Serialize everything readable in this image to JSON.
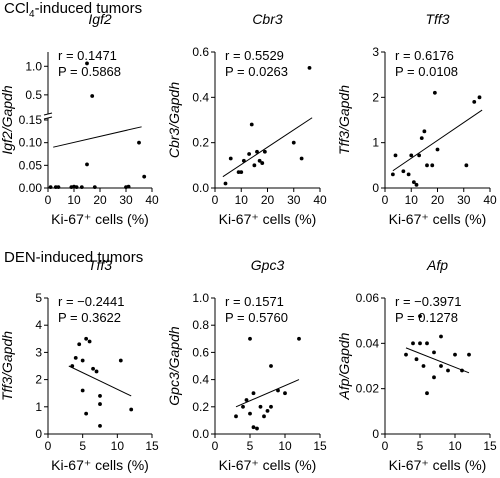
{
  "sections": [
    {
      "title_main": "CCl",
      "title_sub": "4",
      "title_rest": "-induced tumors"
    },
    {
      "title_main": "DEN-induced tumors",
      "title_sub": "",
      "title_rest": ""
    }
  ],
  "chart_data": [
    {
      "type": "scatter",
      "title": "Igf2",
      "ylabel": "Igf2/Gapdh",
      "xlabel": "Ki-67⁺ cells (%)",
      "xlim": [
        0,
        40
      ],
      "xticks": [
        0,
        10,
        20,
        30,
        40
      ],
      "ylim": [
        0,
        1.25
      ],
      "yticks": [
        0.0,
        0.05,
        0.1,
        0.15,
        0.5,
        1.0
      ],
      "ytick_labels": [
        "0.00",
        "0.05",
        "0.10",
        "0.15",
        "0.5",
        "1.0"
      ],
      "broken_axis": {
        "lower": [
          0,
          0.15
        ],
        "upper": [
          0.2,
          1.25
        ]
      },
      "r": "r = 0.1471",
      "p": "P = 0.5868",
      "points": [
        [
          1,
          0.002
        ],
        [
          3,
          0.002
        ],
        [
          4,
          0.002
        ],
        [
          9,
          0.002
        ],
        [
          10,
          0.003
        ],
        [
          11,
          0.002
        ],
        [
          13,
          0.002
        ],
        [
          15,
          1.05
        ],
        [
          15,
          0.052
        ],
        [
          17,
          0.48
        ],
        [
          18,
          0.002
        ],
        [
          30,
          0.002
        ],
        [
          31,
          0.003
        ],
        [
          35,
          0.1
        ],
        [
          37,
          0.025
        ]
      ],
      "fit": [
        [
          2,
          0.09
        ],
        [
          36,
          0.135
        ]
      ]
    },
    {
      "type": "scatter",
      "title": "Cbr3",
      "ylabel": "Cbr3/Gapdh",
      "xlabel": "Ki-67⁺ cells (%)",
      "xlim": [
        0,
        40
      ],
      "xticks": [
        0,
        10,
        20,
        30,
        40
      ],
      "ylim": [
        0,
        0.6
      ],
      "yticks": [
        0.0,
        0.2,
        0.4,
        0.6
      ],
      "ytick_labels": [
        "0.0",
        "0.2",
        "0.4",
        "0.6"
      ],
      "r": "r = 0.5529",
      "p": "P = 0.0263",
      "points": [
        [
          4,
          0.02
        ],
        [
          6,
          0.13
        ],
        [
          9,
          0.07
        ],
        [
          10,
          0.07
        ],
        [
          11,
          0.12
        ],
        [
          13,
          0.15
        ],
        [
          14,
          0.28
        ],
        [
          15,
          0.1
        ],
        [
          16,
          0.16
        ],
        [
          17,
          0.12
        ],
        [
          18,
          0.11
        ],
        [
          19,
          0.16
        ],
        [
          30,
          0.2
        ],
        [
          33,
          0.13
        ],
        [
          36,
          0.53
        ]
      ],
      "fit": [
        [
          3,
          0.05
        ],
        [
          37,
          0.31
        ]
      ]
    },
    {
      "type": "scatter",
      "title": "Tff3",
      "ylabel": "Tff3/Gapdh",
      "xlabel": "Ki-67⁺ cells (%)",
      "xlim": [
        0,
        40
      ],
      "xticks": [
        0,
        10,
        20,
        30,
        40
      ],
      "ylim": [
        0,
        3
      ],
      "yticks": [
        0,
        1,
        2,
        3
      ],
      "ytick_labels": [
        "0",
        "1",
        "2",
        "3"
      ],
      "r": "r = 0.6176",
      "p": "P = 0.0108",
      "points": [
        [
          3,
          0.3
        ],
        [
          4,
          0.72
        ],
        [
          7,
          0.37
        ],
        [
          9,
          0.3
        ],
        [
          10,
          0.72
        ],
        [
          11,
          0.13
        ],
        [
          12,
          0.07
        ],
        [
          13,
          0.72
        ],
        [
          14,
          1.1
        ],
        [
          15,
          1.25
        ],
        [
          16,
          0.5
        ],
        [
          18,
          0.5
        ],
        [
          19,
          2.1
        ],
        [
          20,
          0.85
        ],
        [
          31,
          0.5
        ],
        [
          34,
          1.9
        ],
        [
          36,
          2.0
        ]
      ],
      "fit": [
        [
          3,
          0.38
        ],
        [
          37,
          1.72
        ]
      ]
    },
    {
      "type": "scatter",
      "title": "Tff3",
      "ylabel": "Tff3/Gapdh",
      "xlabel": "Ki-67⁺ cells (%)",
      "xlim": [
        0,
        15
      ],
      "xticks": [
        0,
        5,
        10,
        15
      ],
      "ylim": [
        0,
        5
      ],
      "yticks": [
        0,
        1,
        2,
        3,
        4,
        5
      ],
      "ytick_labels": [
        "0",
        "1",
        "2",
        "3",
        "4",
        "5"
      ],
      "r": "r = −0.2441",
      "p": "P = 0.3622",
      "points": [
        [
          3.5,
          2.5
        ],
        [
          4,
          2.8
        ],
        [
          4.5,
          3.3
        ],
        [
          5,
          1.6
        ],
        [
          5,
          2.7
        ],
        [
          5.5,
          0.75
        ],
        [
          5.5,
          3.5
        ],
        [
          6,
          3.4
        ],
        [
          6.5,
          2.4
        ],
        [
          7,
          2.3
        ],
        [
          7.5,
          1.1
        ],
        [
          7.5,
          1.4
        ],
        [
          7.5,
          0.3
        ],
        [
          10.5,
          2.7
        ],
        [
          12,
          0.9
        ]
      ],
      "fit": [
        [
          3,
          2.5
        ],
        [
          12,
          1.4
        ]
      ]
    },
    {
      "type": "scatter",
      "title": "Gpc3",
      "ylabel": "Gpc3/Gapdh",
      "xlabel": "Ki-67⁺ cells (%)",
      "xlim": [
        0,
        15
      ],
      "xticks": [
        0,
        5,
        10,
        15
      ],
      "ylim": [
        0,
        1.0
      ],
      "yticks": [
        0.0,
        0.2,
        0.4,
        0.6,
        0.8,
        1.0
      ],
      "ytick_labels": [
        "0.0",
        "0.2",
        "0.4",
        "0.6",
        "0.8",
        "1.0"
      ],
      "r": "r = 0.1571",
      "p": "P = 0.5760",
      "points": [
        [
          3,
          0.13
        ],
        [
          4,
          0.2
        ],
        [
          4.5,
          0.25
        ],
        [
          5,
          0.7
        ],
        [
          5,
          0.15
        ],
        [
          5.5,
          0.3
        ],
        [
          5.5,
          0.05
        ],
        [
          6,
          0.04
        ],
        [
          6.5,
          0.2
        ],
        [
          7,
          0.13
        ],
        [
          7.5,
          0.17
        ],
        [
          8,
          0.5
        ],
        [
          8,
          0.2
        ],
        [
          9,
          0.32
        ],
        [
          10,
          0.3
        ],
        [
          12,
          0.7
        ]
      ],
      "fit": [
        [
          3,
          0.2
        ],
        [
          12,
          0.4
        ]
      ]
    },
    {
      "type": "scatter",
      "title": "Afp",
      "ylabel": "Afp/Gapdh",
      "xlabel": "Ki-67⁺ cells (%)",
      "xlim": [
        0,
        15
      ],
      "xticks": [
        0,
        5,
        10,
        15
      ],
      "ylim": [
        0,
        0.06
      ],
      "yticks": [
        0,
        0.02,
        0.04,
        0.06
      ],
      "ytick_labels": [
        "0",
        "0.02",
        "0.04",
        "0.06"
      ],
      "r": "r = −0.3971",
      "p": "P = 0.1278",
      "points": [
        [
          3,
          0.035
        ],
        [
          4,
          0.04
        ],
        [
          4.5,
          0.033
        ],
        [
          5,
          0.052
        ],
        [
          5,
          0.04
        ],
        [
          5.5,
          0.03
        ],
        [
          6,
          0.018
        ],
        [
          6,
          0.04
        ],
        [
          7,
          0.036
        ],
        [
          7,
          0.025
        ],
        [
          8,
          0.043
        ],
        [
          8,
          0.03
        ],
        [
          9,
          0.028
        ],
        [
          10,
          0.035
        ],
        [
          11,
          0.028
        ],
        [
          12,
          0.035
        ]
      ],
      "fit": [
        [
          3,
          0.038
        ],
        [
          12,
          0.027
        ]
      ]
    }
  ]
}
